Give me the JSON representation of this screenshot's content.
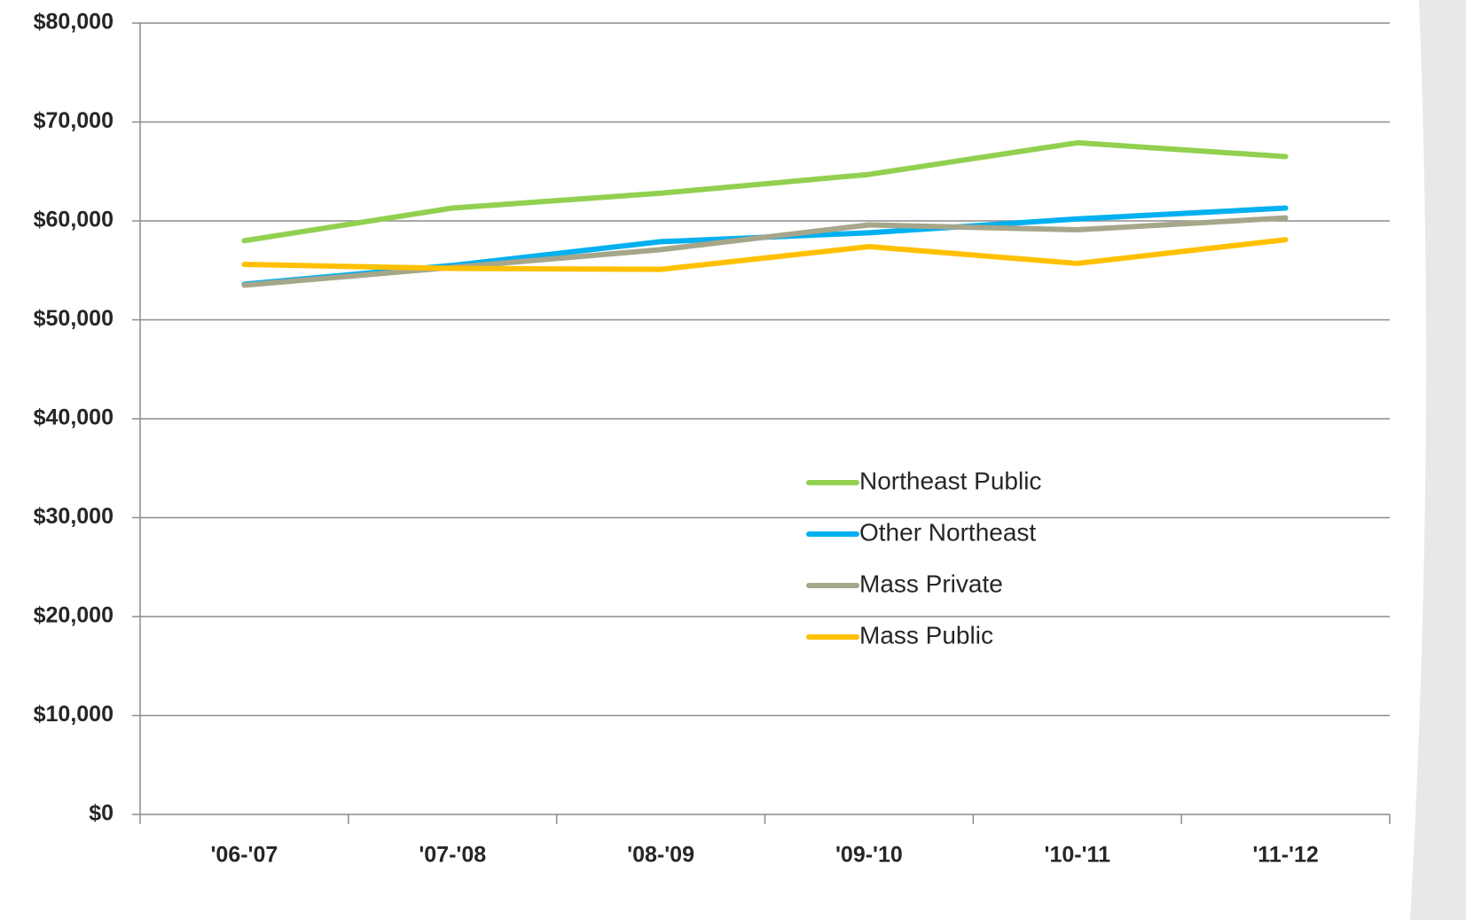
{
  "chart_data": {
    "type": "line",
    "categories": [
      "'06-'07",
      "'07-'08",
      "'08-'09",
      "'09-'10",
      "'10-'11",
      "'11-'12"
    ],
    "series": [
      {
        "name": "Northeast Public",
        "color": "#92d050",
        "values": [
          58000,
          61300,
          62800,
          64700,
          67900,
          66500
        ]
      },
      {
        "name": "Other Northeast",
        "color": "#00b0f0",
        "values": [
          53600,
          55500,
          57900,
          58800,
          60200,
          61300
        ]
      },
      {
        "name": "Mass Private",
        "color": "#a6a68a",
        "values": [
          53500,
          55300,
          57100,
          59600,
          59100,
          60300
        ]
      },
      {
        "name": "Mass Public",
        "color": "#ffc000",
        "values": [
          55600,
          55200,
          55100,
          57400,
          55700,
          58100
        ]
      }
    ],
    "ylim": [
      0,
      80000
    ],
    "yticks": [
      {
        "value": 0,
        "label": "$0"
      },
      {
        "value": 10000,
        "label": "$10,000"
      },
      {
        "value": 20000,
        "label": "$20,000"
      },
      {
        "value": 30000,
        "label": "$30,000"
      },
      {
        "value": 40000,
        "label": "$40,000"
      },
      {
        "value": 50000,
        "label": "$50,000"
      },
      {
        "value": 60000,
        "label": "$60,000"
      },
      {
        "value": 70000,
        "label": "$70,000"
      },
      {
        "value": 80000,
        "label": "$80,000"
      }
    ],
    "grid": true
  }
}
